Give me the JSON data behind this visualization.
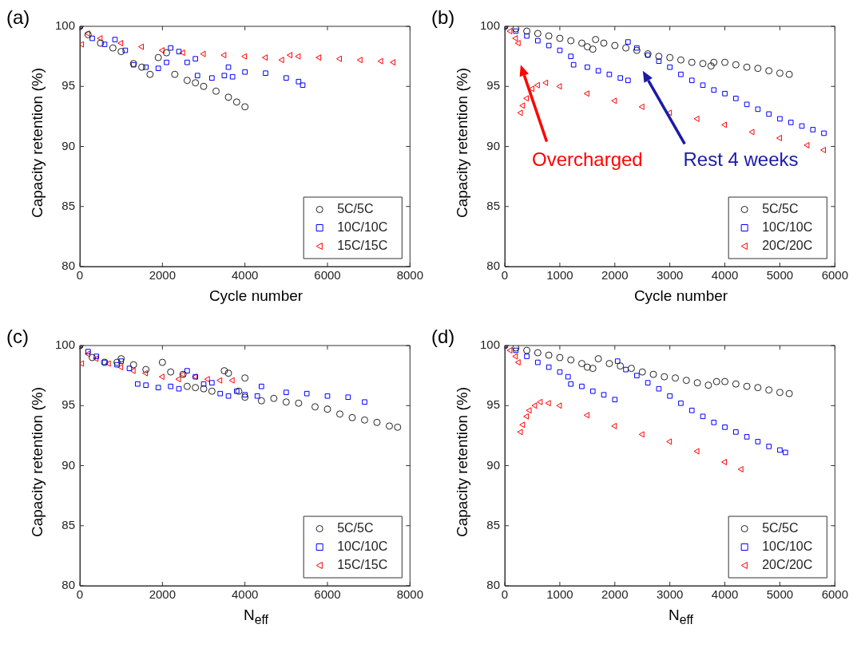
{
  "chart_data": [
    {
      "type": "scatter",
      "title": "(a)",
      "xlabel": "Cycle number",
      "ylabel": "Capacity retention (%)",
      "xlim": [
        0,
        8000
      ],
      "xticks": [
        0,
        2000,
        4000,
        6000,
        8000
      ],
      "ylim": [
        80,
        100
      ],
      "yticks": [
        80,
        85,
        90,
        95,
        100
      ],
      "legend": "bottom right",
      "series": [
        {
          "name": "5C/5C",
          "color": "#222222",
          "marker": "circle",
          "x": [
            0,
            200,
            500,
            800,
            1000,
            1300,
            1500,
            1700,
            1900,
            2100,
            2300,
            2600,
            2800,
            3000,
            3300,
            3600,
            3800,
            4000
          ],
          "values": [
            100,
            99.3,
            98.6,
            98.2,
            97.9,
            96.9,
            96.6,
            96.0,
            97.4,
            97.8,
            96.0,
            95.5,
            95.3,
            95.0,
            94.6,
            94.1,
            93.7,
            93.3
          ]
        },
        {
          "name": "10C/10C",
          "color": "#0000ff",
          "marker": "square",
          "x": [
            0,
            300,
            600,
            850,
            1100,
            1300,
            1600,
            1900,
            2100,
            2200,
            2400,
            2600,
            2800,
            2850,
            3200,
            3500,
            3600,
            3700,
            4000,
            4500,
            5000,
            5300,
            5400
          ],
          "values": [
            100,
            99.0,
            98.5,
            98.9,
            98.0,
            96.8,
            96.6,
            96.5,
            97.0,
            98.2,
            97.9,
            97.0,
            97.3,
            95.9,
            95.7,
            95.9,
            96.6,
            95.8,
            96.2,
            96.1,
            95.7,
            95.4,
            95.1
          ]
        },
        {
          "name": "15C/15C",
          "color": "#ff0000",
          "marker": "triangle",
          "x": [
            0,
            50,
            200,
            500,
            1000,
            1500,
            2000,
            2500,
            3000,
            3500,
            4000,
            4500,
            4900,
            5100,
            5300,
            5800,
            6300,
            6800,
            7300,
            7600
          ],
          "values": [
            100,
            98.5,
            99.4,
            99.0,
            98.6,
            98.3,
            98.0,
            97.8,
            97.7,
            97.6,
            97.5,
            97.4,
            97.2,
            97.6,
            97.5,
            97.4,
            97.3,
            97.2,
            97.1,
            97.0
          ]
        }
      ]
    },
    {
      "type": "scatter",
      "title": "(b)",
      "xlabel": "Cycle number",
      "ylabel": "Capacity retention (%)",
      "xlim": [
        0,
        6000
      ],
      "xticks": [
        0,
        1000,
        2000,
        3000,
        4000,
        5000,
        6000
      ],
      "ylim": [
        80,
        100
      ],
      "yticks": [
        80,
        85,
        90,
        95,
        100
      ],
      "legend": "bottom right",
      "annotations": [
        "Overcharged",
        "Rest 4 weeks"
      ],
      "series": [
        {
          "name": "5C/5C",
          "color": "#222222",
          "marker": "circle",
          "x": [
            0,
            200,
            400,
            600,
            800,
            1000,
            1200,
            1400,
            1500,
            1600,
            1650,
            1800,
            2000,
            2200,
            2400,
            2600,
            2800,
            3000,
            3200,
            3400,
            3600,
            3750,
            3800,
            4000,
            4200,
            4400,
            4600,
            4800,
            5000,
            5170
          ],
          "values": [
            100,
            99.8,
            99.6,
            99.4,
            99.2,
            99.0,
            98.8,
            98.6,
            98.3,
            98.1,
            98.9,
            98.6,
            98.4,
            98.2,
            98.0,
            97.7,
            97.5,
            97.4,
            97.2,
            97.0,
            96.9,
            96.7,
            97.0,
            97.0,
            96.8,
            96.6,
            96.5,
            96.3,
            96.1,
            96.0
          ]
        },
        {
          "name": "10C/10C",
          "color": "#0000ff",
          "marker": "square",
          "x": [
            0,
            200,
            400,
            600,
            800,
            1000,
            1200,
            1250,
            1500,
            1700,
            1900,
            2100,
            2240,
            2240,
            2400,
            2600,
            2800,
            3000,
            3200,
            3400,
            3600,
            3800,
            4000,
            4200,
            4400,
            4600,
            4800,
            5000,
            5200,
            5400,
            5600,
            5800
          ],
          "values": [
            100,
            99.6,
            99.2,
            98.8,
            98.4,
            98.0,
            97.5,
            96.8,
            96.6,
            96.3,
            96.0,
            95.7,
            95.5,
            98.7,
            98.2,
            97.6,
            97.1,
            96.6,
            96.0,
            95.5,
            95.1,
            94.7,
            94.4,
            94.0,
            93.5,
            93.1,
            92.7,
            92.3,
            92.0,
            91.7,
            91.4,
            91.1
          ]
        },
        {
          "name": "20C/20C",
          "color": "#ff0000",
          "marker": "triangle",
          "x": [
            0,
            100,
            200,
            250,
            290,
            330,
            400,
            500,
            600,
            750,
            1000,
            1500,
            2000,
            2500,
            3000,
            3500,
            4000,
            4500,
            5000,
            5500,
            5800
          ],
          "values": [
            100,
            99.6,
            99.0,
            98.6,
            92.8,
            93.4,
            94.0,
            94.8,
            95.1,
            95.3,
            95.0,
            94.4,
            93.8,
            93.3,
            92.8,
            92.3,
            91.8,
            91.2,
            90.7,
            90.1,
            89.7
          ]
        }
      ]
    },
    {
      "type": "scatter",
      "title": "(c)",
      "xlabel": "N$_{eff}$",
      "ylabel": "Capacity retention (%)",
      "xlim": [
        0,
        8000
      ],
      "xticks": [
        0,
        2000,
        4000,
        6000,
        8000
      ],
      "ylim": [
        80,
        100
      ],
      "yticks": [
        80,
        85,
        90,
        95,
        100
      ],
      "legend": "bottom right",
      "series": [
        {
          "name": "5C/5C",
          "color": "#222222",
          "marker": "circle",
          "x": [
            0,
            300,
            600,
            900,
            1000,
            1300,
            1600,
            2000,
            2200,
            2500,
            2600,
            2800,
            3000,
            3200,
            3500,
            3600,
            3850,
            4000,
            4000,
            4400,
            4700,
            5000,
            5300,
            5700,
            6000,
            6300,
            6600,
            6900,
            7200,
            7500,
            7700
          ],
          "values": [
            100,
            99.0,
            98.6,
            98.6,
            98.9,
            98.4,
            98.0,
            98.6,
            97.8,
            97.6,
            96.6,
            96.5,
            96.4,
            96.2,
            97.9,
            97.7,
            96.2,
            97.3,
            95.7,
            95.4,
            95.6,
            95.3,
            95.2,
            94.9,
            94.7,
            94.3,
            94.0,
            93.8,
            93.6,
            93.3,
            93.2
          ]
        },
        {
          "name": "10C/10C",
          "color": "#0000ff",
          "marker": "square",
          "x": [
            0,
            200,
            400,
            600,
            900,
            1000,
            1200,
            1400,
            1600,
            1900,
            2200,
            2400,
            2600,
            2800,
            3000,
            3200,
            3400,
            3600,
            3800,
            4000,
            4300,
            4400,
            5000,
            5500,
            6000,
            6500,
            6900
          ],
          "values": [
            100,
            99.5,
            99.1,
            98.6,
            98.4,
            98.7,
            98.1,
            96.8,
            96.7,
            96.5,
            96.6,
            96.4,
            97.9,
            97.4,
            96.8,
            96.9,
            96.0,
            95.8,
            96.2,
            95.9,
            95.8,
            96.6,
            96.1,
            96.0,
            95.8,
            95.7,
            95.3
          ]
        },
        {
          "name": "15C/15C",
          "color": "#ff0000",
          "marker": "triangle",
          "x": [
            0,
            50,
            200,
            400,
            700,
            1000,
            1300,
            1600,
            2000,
            2400,
            2500,
            2800,
            3100,
            3400,
            3700
          ],
          "values": [
            100,
            98.5,
            99.3,
            98.9,
            98.5,
            98.2,
            97.9,
            97.7,
            97.4,
            97.2,
            97.6,
            97.4,
            97.2,
            97.1,
            97.1
          ]
        }
      ]
    },
    {
      "type": "scatter",
      "title": "(d)",
      "xlabel": "N$_{eff}$",
      "ylabel": "Capacity retention (%)",
      "xlim": [
        0,
        6000
      ],
      "xticks": [
        0,
        1000,
        2000,
        3000,
        4000,
        5000,
        6000
      ],
      "ylim": [
        80,
        100
      ],
      "yticks": [
        80,
        85,
        90,
        95,
        100
      ],
      "legend": "bottom right",
      "series": [
        {
          "name": "5C/5C",
          "color": "#222222",
          "marker": "circle",
          "x": [
            0,
            200,
            400,
            600,
            800,
            1000,
            1200,
            1400,
            1500,
            1600,
            1700,
            1900,
            2100,
            2300,
            2500,
            2700,
            2900,
            3100,
            3300,
            3500,
            3700,
            3850,
            4000,
            4200,
            4400,
            4600,
            4800,
            5000,
            5170
          ],
          "values": [
            100,
            99.8,
            99.6,
            99.4,
            99.2,
            99.0,
            98.8,
            98.5,
            98.2,
            98.1,
            98.9,
            98.5,
            98.3,
            98.1,
            97.8,
            97.6,
            97.4,
            97.3,
            97.1,
            96.9,
            96.7,
            97.0,
            97.0,
            96.8,
            96.6,
            96.5,
            96.3,
            96.1,
            96.0
          ]
        },
        {
          "name": "10C/10C",
          "color": "#0000ff",
          "marker": "square",
          "x": [
            0,
            200,
            400,
            600,
            800,
            1000,
            1150,
            1200,
            1400,
            1600,
            1800,
            2000,
            2050,
            2200,
            2400,
            2600,
            2800,
            3000,
            3200,
            3400,
            3600,
            3800,
            4000,
            4200,
            4400,
            4600,
            4800,
            5000,
            5100
          ],
          "values": [
            100,
            99.6,
            99.1,
            98.6,
            98.2,
            97.8,
            97.4,
            96.8,
            96.6,
            96.2,
            95.9,
            95.5,
            98.7,
            98.0,
            97.5,
            96.9,
            96.4,
            95.8,
            95.2,
            94.6,
            94.1,
            93.6,
            93.2,
            92.8,
            92.4,
            92.0,
            91.6,
            91.3,
            91.1
          ]
        },
        {
          "name": "20C/20C",
          "color": "#ff0000",
          "marker": "triangle",
          "x": [
            0,
            100,
            200,
            250,
            290,
            330,
            400,
            450,
            550,
            650,
            800,
            1000,
            1500,
            2000,
            2500,
            3000,
            3500,
            4000,
            4300
          ],
          "values": [
            100,
            99.6,
            99.1,
            98.6,
            92.8,
            93.4,
            94.1,
            94.6,
            95.0,
            95.3,
            95.2,
            95.0,
            94.2,
            93.3,
            92.6,
            92.0,
            91.2,
            90.3,
            89.7
          ]
        }
      ]
    }
  ]
}
